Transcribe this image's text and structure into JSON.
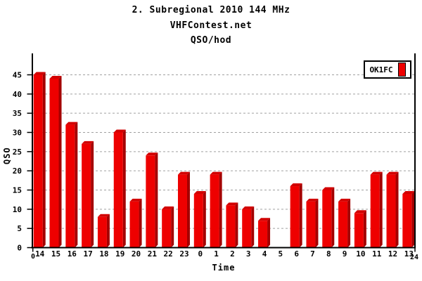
{
  "titles": {
    "line1": "2. Subregional 2010 144 MHz",
    "line2": "VHFContest.net",
    "line3": "QSO/hod"
  },
  "legend": {
    "label": "OK1FC",
    "swatch_color": "#ee0000"
  },
  "axis_labels": {
    "y": "QSO",
    "x": "Time"
  },
  "chart_data": {
    "type": "bar",
    "style": "3d-bars",
    "title": "QSO/hod",
    "xlabel": "Time",
    "ylabel": "QSO",
    "categories": [
      "14",
      "15",
      "16",
      "17",
      "18",
      "19",
      "20",
      "21",
      "22",
      "23",
      "0",
      "1",
      "2",
      "3",
      "4",
      "5",
      "6",
      "7",
      "8",
      "9",
      "10",
      "11",
      "12",
      "13"
    ],
    "series": [
      {
        "name": "OK1FC",
        "values": [
          45,
          44,
          32,
          27,
          8,
          30,
          12,
          24,
          10,
          19,
          14,
          19,
          11,
          10,
          7,
          0,
          16,
          12,
          15,
          12,
          9,
          19,
          19,
          14
        ]
      }
    ],
    "y_ticks": [
      0,
      5,
      10,
      15,
      20,
      25,
      30,
      35,
      40,
      45
    ],
    "ylim": [
      0,
      50.5
    ],
    "x_axis_end_labels": [
      "0",
      "24"
    ],
    "grid": "horizontal-dashed",
    "legend_position": "top-right",
    "colors": {
      "bar_front": "#ee0000",
      "bar_top": "#d20000",
      "bar_side": "#a40000",
      "grid": "#a0a0a0",
      "axis": "#000000",
      "text": "#000000",
      "background": "#ffffff"
    }
  }
}
